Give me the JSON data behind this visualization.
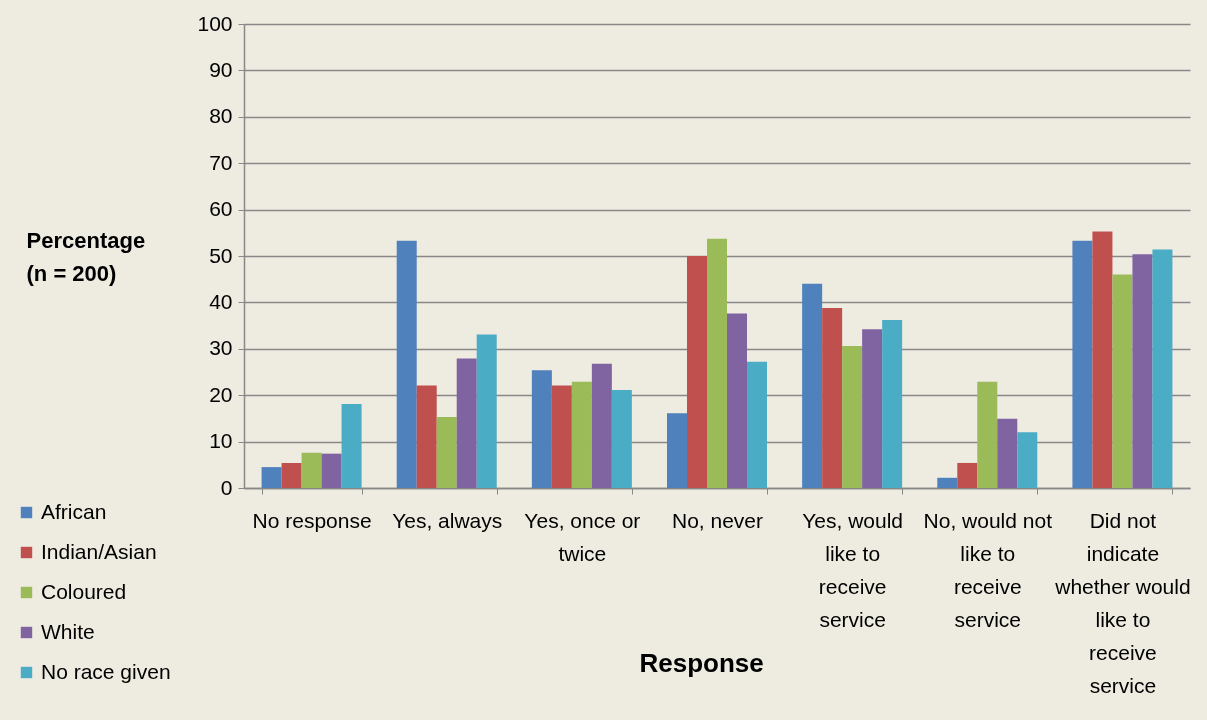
{
  "chart_data": {
    "type": "bar",
    "ylabel": "Percentage (n = 200)",
    "xlabel": "Response",
    "categories": [
      "No response",
      "Yes, always",
      "Yes, once or twice",
      "No, never",
      "Yes, would like to receive service",
      "No, would not like to receive service",
      "Did not indicate whether would like to receive service"
    ],
    "series": [
      {
        "name": "African",
        "color": "#4f81bd",
        "values": [
          4.5,
          53.3,
          25.4,
          16.1,
          44.0,
          2.2,
          53.3
        ]
      },
      {
        "name": "Indian/Asian",
        "color": "#c0504d",
        "values": [
          5.4,
          22.1,
          22.1,
          50.0,
          38.8,
          5.4,
          55.3
        ]
      },
      {
        "name": "Coloured",
        "color": "#9bbb59",
        "values": [
          7.6,
          15.3,
          22.9,
          53.7,
          30.6,
          22.9,
          46.0
        ]
      },
      {
        "name": "White",
        "color": "#8064a2",
        "values": [
          7.4,
          27.9,
          26.8,
          37.6,
          34.2,
          14.9,
          50.4
        ]
      },
      {
        "name": "No race given",
        "color": "#4bacc6",
        "values": [
          18.1,
          33.1,
          21.1,
          27.2,
          36.2,
          12.0,
          51.4
        ]
      }
    ],
    "ylim": [
      0,
      100
    ],
    "yticks": [
      0,
      10,
      20,
      30,
      40,
      50,
      60,
      70,
      80,
      90,
      100
    ],
    "grid": "y",
    "legend": "bottom left"
  }
}
